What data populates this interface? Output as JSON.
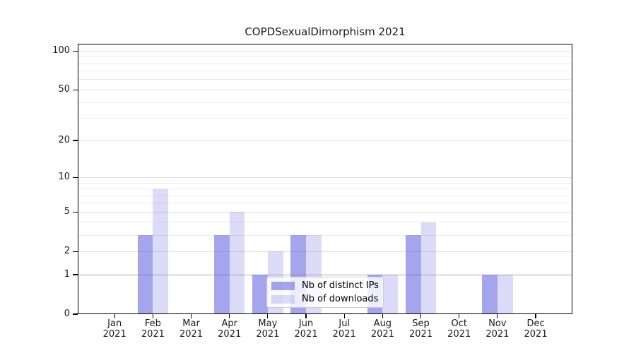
{
  "chart_data": {
    "type": "bar",
    "title": "COPDSexualDimorphism 2021",
    "x_months": [
      "Jan",
      "Feb",
      "Mar",
      "Apr",
      "May",
      "Jun",
      "Jul",
      "Aug",
      "Sep",
      "Oct",
      "Nov",
      "Dec"
    ],
    "x_year": "2021",
    "categories": [
      "Jan 2021",
      "Feb 2021",
      "Mar 2021",
      "Apr 2021",
      "May 2021",
      "Jun 2021",
      "Jul 2021",
      "Aug 2021",
      "Sep 2021",
      "Oct 2021",
      "Nov 2021",
      "Dec 2021"
    ],
    "series": [
      {
        "name": "Nb of distinct IPs",
        "color": "rgba(105,105,225,0.60)",
        "values": [
          0,
          3,
          0,
          3,
          1,
          3,
          0,
          1,
          3,
          0,
          1,
          0
        ]
      },
      {
        "name": "Nb of downloads",
        "color": "rgba(105,105,225,0.235)",
        "values": [
          0,
          8,
          0,
          5,
          2,
          3,
          0,
          1,
          4,
          0,
          1,
          0
        ]
      }
    ],
    "y_scale": "log1p",
    "y_ticks": [
      0,
      1,
      2,
      5,
      10,
      20,
      50,
      100
    ],
    "y_minor_gridlines": [
      3,
      4,
      6,
      7,
      8,
      9,
      30,
      40,
      60,
      70,
      80,
      90
    ],
    "ylim": [
      0,
      115
    ],
    "grid": "horizontal",
    "legend_position": "inside-lower-center",
    "colors": {
      "major_grid": "#dedede",
      "minor_grid": "#ebebeb",
      "baseline_grid": "#ababab",
      "axis": "#000000",
      "text": "#1a1a1a",
      "legend_border": "#cccccc",
      "background": "#ffffff"
    }
  }
}
